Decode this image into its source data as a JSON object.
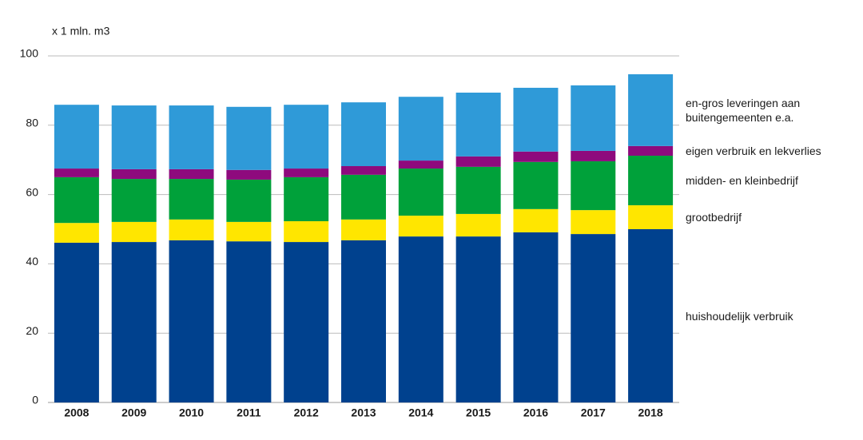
{
  "chart_data": {
    "type": "stacked_bar",
    "y_axis_label": "x 1 mln. m3",
    "categories": [
      "2008",
      "2009",
      "2010",
      "2011",
      "2012",
      "2013",
      "2014",
      "2015",
      "2016",
      "2017",
      "2018"
    ],
    "series": [
      {
        "name": "huishoudelijk verbruik",
        "color": "#00418e",
        "values": [
          46.1,
          46.3,
          46.8,
          46.5,
          46.3,
          46.8,
          47.9,
          47.9,
          49.1,
          48.6,
          50.0
        ]
      },
      {
        "name": "grootbedrijf",
        "color": "#ffe600",
        "values": [
          5.7,
          5.8,
          6.0,
          5.6,
          6.0,
          6.0,
          6.0,
          6.5,
          6.7,
          6.9,
          6.9
        ]
      },
      {
        "name": "midden- en kleinbedrijf",
        "color": "#00a13a",
        "values": [
          13.2,
          12.4,
          11.7,
          12.2,
          12.7,
          12.9,
          13.6,
          13.6,
          13.6,
          14.1,
          14.3
        ]
      },
      {
        "name": "eigen verbruik en lekverlies",
        "color": "#8e0a7d",
        "values": [
          2.5,
          2.8,
          2.8,
          2.8,
          2.5,
          2.5,
          2.3,
          3.0,
          3.0,
          3.0,
          2.8
        ]
      },
      {
        "name": "en-gros leveringen aan buitengemeenten e.a.",
        "color": "#2f9ad8",
        "values": [
          18.4,
          18.4,
          18.4,
          18.2,
          18.4,
          18.4,
          18.4,
          18.4,
          18.4,
          18.9,
          20.7
        ]
      }
    ],
    "ylim": [
      0,
      100
    ],
    "yticks": [
      0,
      20,
      40,
      60,
      80,
      100
    ],
    "grid": true
  }
}
